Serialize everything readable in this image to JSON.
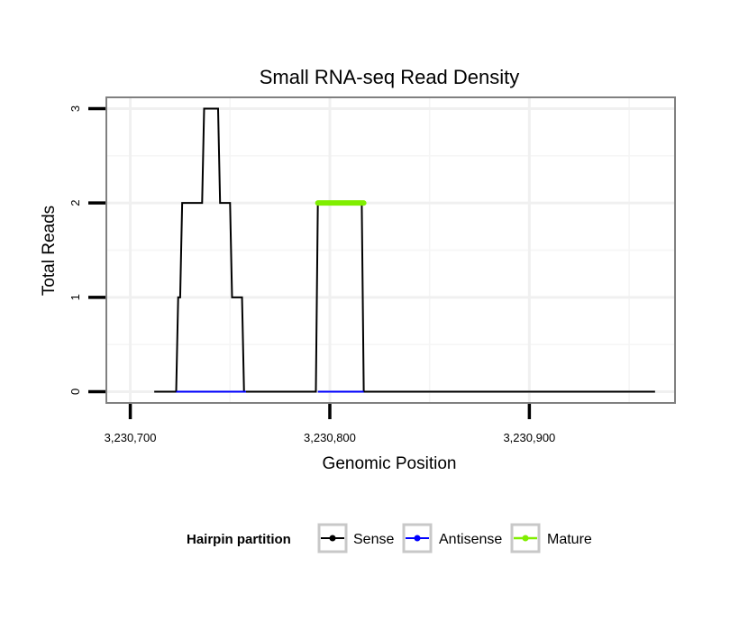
{
  "chart_data": {
    "type": "line",
    "title": "Small RNA-seq Read Density",
    "xlabel": "Genomic Position",
    "ylabel": "Total Reads",
    "xlim": [
      3230688,
      3230973
    ],
    "ylim": [
      -0.12,
      3.12
    ],
    "x_ticks": [
      3230700,
      3230800,
      3230900
    ],
    "x_tick_labels": [
      "3,230,700",
      "3,230,800",
      "3,230,900"
    ],
    "y_ticks": [
      0,
      1,
      2,
      3
    ],
    "y_tick_labels": [
      "0",
      "1",
      "2",
      "3"
    ],
    "grid": true,
    "legend": {
      "title": "Hairpin partition",
      "position": "bottom",
      "entries": [
        "Sense",
        "Antisense",
        "Mature"
      ]
    },
    "series": [
      {
        "name": "Sense",
        "color": "#000000",
        "x": [
          3230712,
          3230723,
          3230724,
          3230725,
          3230726,
          3230736,
          3230737,
          3230744,
          3230745,
          3230750,
          3230751,
          3230756,
          3230757,
          3230758,
          3230793,
          3230794,
          3230816,
          3230817,
          3230963
        ],
        "y": [
          0,
          0,
          1,
          1,
          2,
          2,
          3,
          3,
          2,
          2,
          1,
          1,
          0,
          0,
          0,
          2,
          2,
          0,
          0
        ]
      },
      {
        "name": "Antisense",
        "color": "#0000ff",
        "x": [
          3230723,
          3230758,
          3230794,
          3230817
        ],
        "y": [
          0,
          0,
          0,
          0
        ],
        "segments": [
          [
            0,
            1
          ],
          [
            2,
            3
          ]
        ]
      },
      {
        "name": "Mature",
        "color": "#80ee00",
        "x": [
          3230794,
          3230817
        ],
        "y": [
          2,
          2
        ]
      }
    ]
  }
}
